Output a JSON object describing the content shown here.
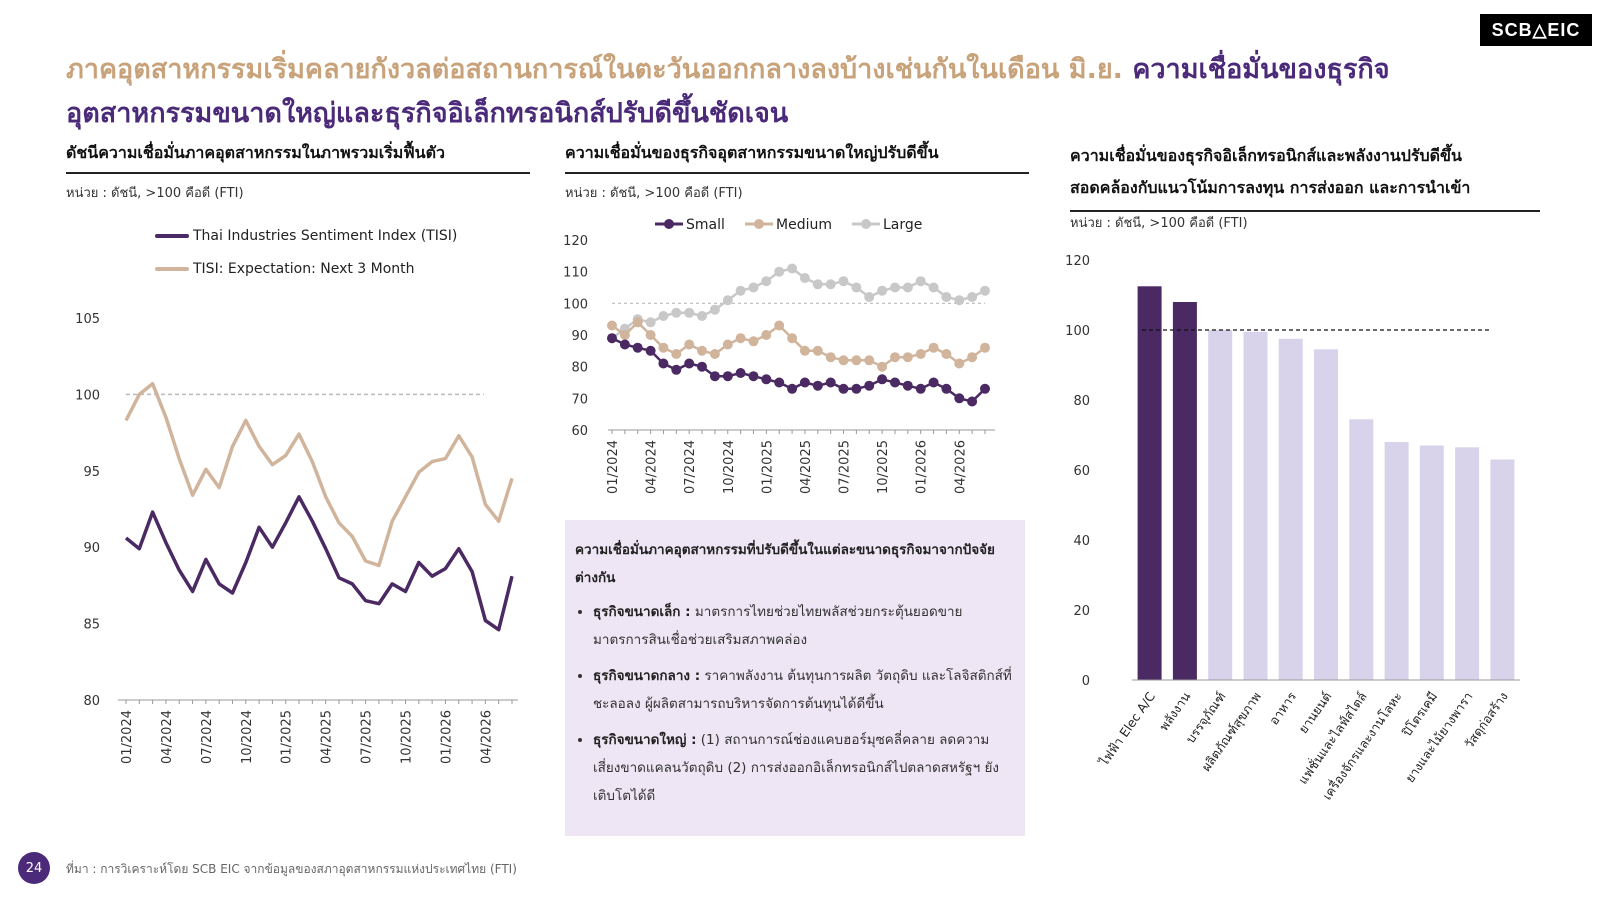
{
  "logo": "SCB△EIC",
  "headline": {
    "part1": "ภาคอุตสาหกรรมเริ่มคลายกังวลต่อสถานการณ์ในตะวันออกกลางลงบ้างเช่นกันในเดือน มิ.ย.",
    "part2": "ความเชื่อมั่นของธุรกิจอุตสาหกรรมขนาดใหญ่และธุรกิจอิเล็กทรอนิกส์ปรับดีขึ้นชัดเจน"
  },
  "left_panel": {
    "title": "ดัชนีความเชื่อมั่นภาคอุตสาหกรรมในภาพรวมเริ่มฟื้นตัว",
    "unit": "หน่วย : ดัชนี, >100 คือดี (FTI)"
  },
  "middle_panel": {
    "title": "ความเชื่อมั่นของธุรกิจอุตสาหกรรมขนาดใหญ่ปรับดีขึ้น",
    "unit": "หน่วย : ดัชนี, >100 คือดี (FTI)"
  },
  "right_panel": {
    "title_line1": "ความเชื่อมั่นของธุรกิจอิเล็กทรอนิกส์และพลังงานปรับดีขึ้น",
    "title_line2": "สอดคล้องกับแนวโน้มการลงทุน การส่งออก และการนำเข้า",
    "unit": "หน่วย : ดัชนี, >100 คือดี (FTI)"
  },
  "callout": {
    "title": "ความเชื่อมั่นภาคอุตสาหกรรมที่ปรับดีขึ้นในแต่ละขนาดธุรกิจมาจากปัจจัยต่างกัน",
    "items": [
      {
        "label": "ธุรกิจขนาดเล็ก :",
        "text": "มาตรการไทยช่วยไทยพลัสช่วยกระตุ้นยอดขาย มาตรการสินเชื่อช่วยเสริมสภาพคล่อง"
      },
      {
        "label": "ธุรกิจขนาดกลาง :",
        "text": "ราคาพลังงาน ต้นทุนการผลิต วัตถุดิบ และโลจิสติกส์ที่ชะลอลง ผู้ผลิตสามารถบริหารจัดการต้นทุนได้ดีขึ้น"
      },
      {
        "label": "ธุรกิจขนาดใหญ่ :",
        "text": "(1) สถานการณ์ช่องแคบฮอร์มุซคลี่คลาย ลดความเสี่ยงขาดแคลนวัตถุดิบ (2) การส่งออกอิเล็กทรอนิกส์ไปตลาดสหรัฐฯ ยังเติบโตได้ดี"
      }
    ]
  },
  "footer": {
    "page_number": "24",
    "source": "ที่มา : การวิเคราะห์โดย SCB EIC จากข้อมูลของสภาอุตสาหกรรมแห่งประเทศไทย (FTI)"
  },
  "colors": {
    "dark_purple": "#4b2a63",
    "tan": "#d1b49c",
    "light_gray": "#c8c8c8",
    "lavender": "#d8d3ea",
    "headline_gold": "#c8a27a",
    "headline_purple": "#4b2a7a"
  },
  "chart_data": [
    {
      "type": "line",
      "x": [
        "01/2024",
        "02/2024",
        "03/2024",
        "04/2024",
        "05/2024",
        "06/2024",
        "07/2024",
        "08/2024",
        "09/2024",
        "10/2024",
        "11/2024",
        "12/2024",
        "01/2025",
        "02/2025",
        "03/2025",
        "04/2025",
        "05/2025",
        "06/2025",
        "07/2025",
        "08/2025",
        "09/2025",
        "10/2025",
        "11/2025",
        "12/2025",
        "01/2026",
        "02/2026",
        "03/2026",
        "04/2026",
        "05/2026",
        "06/2026"
      ],
      "x_tick_labels": [
        "01/2024",
        "04/2024",
        "07/2024",
        "10/2024",
        "01/2025",
        "04/2025",
        "07/2025",
        "10/2025",
        "01/2026",
        "04/2026"
      ],
      "series": [
        {
          "name": "Thai Industries Sentiment Index (TISI)",
          "values": [
            90.6,
            89.9,
            92.3,
            90.3,
            88.5,
            87.1,
            89.2,
            87.6,
            87.0,
            89.0,
            91.3,
            90.0,
            91.6,
            93.3,
            91.7,
            89.9,
            88.0,
            87.6,
            86.5,
            86.3,
            87.6,
            87.1,
            89.0,
            88.1,
            88.6,
            89.9,
            88.4,
            85.2,
            84.6,
            88.1
          ]
        },
        {
          "name": "TISI: Expectation: Next 3 Month",
          "values": [
            98.3,
            100.0,
            100.7,
            98.5,
            95.8,
            93.4,
            95.1,
            93.9,
            96.6,
            98.3,
            96.6,
            95.4,
            96.0,
            97.4,
            95.6,
            93.3,
            91.6,
            90.7,
            89.1,
            88.8,
            91.7,
            93.3,
            94.9,
            95.6,
            95.8,
            97.3,
            95.9,
            92.8,
            91.7,
            94.5
          ]
        }
      ],
      "reference_line": 100,
      "ylim": [
        80,
        105
      ],
      "yticks": [
        80,
        85,
        90,
        95,
        100,
        105
      ],
      "legend": "top-left"
    },
    {
      "type": "line",
      "x": [
        "01/2024",
        "02/2024",
        "03/2024",
        "04/2024",
        "05/2024",
        "06/2024",
        "07/2024",
        "08/2024",
        "09/2024",
        "10/2024",
        "11/2024",
        "12/2024",
        "01/2025",
        "02/2025",
        "03/2025",
        "04/2025",
        "05/2025",
        "06/2025",
        "07/2025",
        "08/2025",
        "09/2025",
        "10/2025",
        "11/2025",
        "12/2025",
        "01/2026",
        "02/2026",
        "03/2026",
        "04/2026",
        "05/2026",
        "06/2026"
      ],
      "x_tick_labels": [
        "01/2024",
        "04/2024",
        "07/2024",
        "10/2024",
        "01/2025",
        "04/2025",
        "07/2025",
        "10/2025",
        "01/2026",
        "04/2026"
      ],
      "series": [
        {
          "name": "Small",
          "values": [
            89,
            87,
            86,
            85,
            81,
            79,
            81,
            80,
            77,
            77,
            78,
            77,
            76,
            75,
            73,
            75,
            74,
            75,
            73,
            73,
            74,
            76,
            75,
            74,
            73,
            75,
            73,
            70,
            69,
            73
          ]
        },
        {
          "name": "Medium",
          "values": [
            93,
            90,
            94,
            90,
            86,
            84,
            87,
            85,
            84,
            87,
            89,
            88,
            90,
            93,
            89,
            85,
            85,
            83,
            82,
            82,
            82,
            80,
            83,
            83,
            84,
            86,
            84,
            81,
            83,
            86
          ]
        },
        {
          "name": "Large",
          "values": [
            89,
            92,
            95,
            94,
            96,
            97,
            97,
            96,
            98,
            101,
            104,
            105,
            107,
            110,
            111,
            108,
            106,
            106,
            107,
            105,
            102,
            104,
            105,
            105,
            107,
            105,
            102,
            101,
            102,
            104
          ]
        }
      ],
      "reference_line": 100,
      "ylim": [
        60,
        120
      ],
      "yticks": [
        60,
        70,
        80,
        90,
        100,
        110,
        120
      ],
      "legend": "top"
    },
    {
      "type": "bar",
      "categories": [
        "ไฟฟ้า Elec A/C",
        "พลังงาน",
        "บรรจุภัณฑ์",
        "ผลิตภัณฑ์สุขภาพ",
        "อาหาร",
        "ยานยนต์",
        "แฟชั่นและไลฟ์สไตล์",
        "เครื่องจักรและงานโลหะ",
        "ปิโตรเคมี",
        "ยางและไม้ยางพารา",
        "วัสดุก่อสร้าง"
      ],
      "values": [
        112.5,
        108,
        100,
        99.5,
        97.5,
        94.5,
        74.5,
        68,
        67,
        66.5,
        63
      ],
      "highlight": [
        true,
        true,
        false,
        false,
        false,
        false,
        false,
        false,
        false,
        false,
        false
      ],
      "reference_line": 100,
      "ylim": [
        0,
        120
      ],
      "yticks": [
        0,
        20,
        40,
        60,
        80,
        100,
        120
      ]
    }
  ]
}
